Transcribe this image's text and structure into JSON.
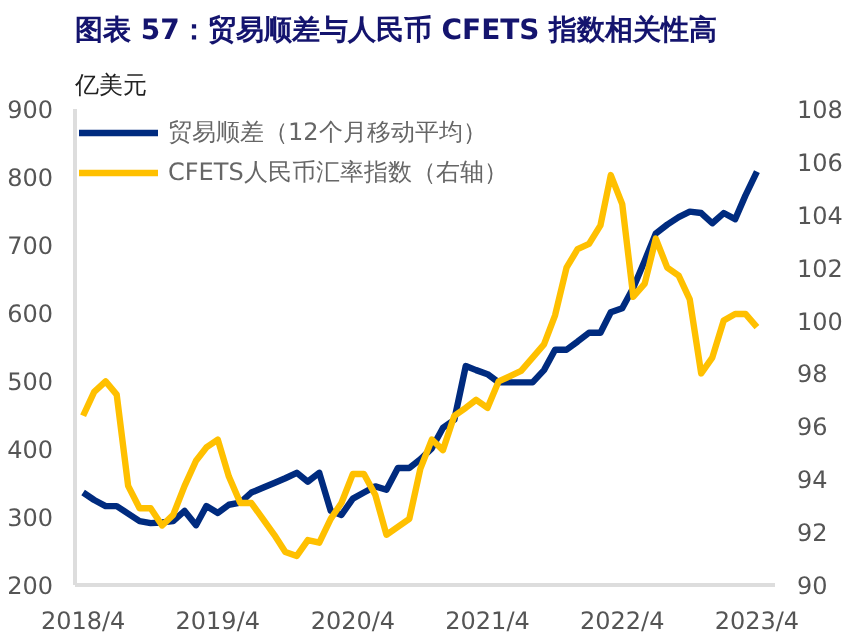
{
  "chart_data": {
    "type": "line",
    "title": "图表 57：贸易顺差与人民币 CFETS 指数相关性高",
    "ylabel": "亿美元",
    "x": [
      "2018-04",
      "2018-05",
      "2018-06",
      "2018-07",
      "2018-08",
      "2018-09",
      "2018-10",
      "2018-11",
      "2018-12",
      "2019-01",
      "2019-02",
      "2019-03",
      "2019-04",
      "2019-05",
      "2019-06",
      "2019-07",
      "2019-08",
      "2019-09",
      "2019-10",
      "2019-11",
      "2019-12",
      "2020-01",
      "2020-02",
      "2020-03",
      "2020-04",
      "2020-05",
      "2020-06",
      "2020-07",
      "2020-08",
      "2020-09",
      "2020-10",
      "2020-11",
      "2020-12",
      "2021-01",
      "2021-02",
      "2021-03",
      "2021-04",
      "2021-05",
      "2021-06",
      "2021-07",
      "2021-08",
      "2021-09",
      "2021-10",
      "2021-11",
      "2021-12",
      "2022-01",
      "2022-02",
      "2022-03",
      "2022-04",
      "2022-05",
      "2022-06",
      "2022-07",
      "2022-08",
      "2022-09",
      "2022-10",
      "2022-11",
      "2022-12",
      "2023-01",
      "2023-02",
      "2023-03",
      "2023-04"
    ],
    "series": [
      {
        "name": "贸易顺差（12个月移动平均）",
        "color": "#002b7f",
        "values": [
          336,
          325,
          316,
          316,
          305,
          294,
          291,
          292,
          294,
          309,
          288,
          316,
          306,
          318,
          321,
          336,
          343,
          350,
          357,
          365,
          352,
          365,
          309,
          303,
          327,
          336,
          345,
          340,
          372,
          372,
          385,
          401,
          431,
          443,
          522,
          516,
          510,
          498,
          498,
          498,
          498,
          516,
          546,
          546,
          558,
          571,
          571,
          601,
          607,
          637,
          677,
          717,
          730,
          741,
          749,
          747,
          732,
          747,
          738,
          773,
          808
        ]
      },
      {
        "name": "CFETS人民币汇率指数（右轴）",
        "color": "#ffc000",
        "axis": "y2",
        "values": [
          96.4,
          97.3,
          97.7,
          97.2,
          93.75,
          92.9,
          92.9,
          92.25,
          92.65,
          93.75,
          94.7,
          95.2,
          95.5,
          94.1,
          93.1,
          93.1,
          92.5,
          91.9,
          91.25,
          91.1,
          91.7,
          91.6,
          92.5,
          93.1,
          94.2,
          94.2,
          93.4,
          91.9,
          92.2,
          92.5,
          94.4,
          95.5,
          95.1,
          96.4,
          96.7,
          97.0,
          96.7,
          97.7,
          97.9,
          98.1,
          98.6,
          99.1,
          100.2,
          102.0,
          102.7,
          102.9,
          103.6,
          105.5,
          104.4,
          100.9,
          101.4,
          103.1,
          102.0,
          101.7,
          100.8,
          98.0,
          98.6,
          100.0,
          100.25,
          100.25,
          99.75
        ]
      }
    ],
    "xlim": [
      "2018-03-10",
      "2023-05-20"
    ],
    "xticks": [
      {
        "value": "2018-04",
        "label": "2018/4"
      },
      {
        "value": "2019-04",
        "label": "2019/4"
      },
      {
        "value": "2020-04",
        "label": "2020/4"
      },
      {
        "value": "2021-04",
        "label": "2021/4"
      },
      {
        "value": "2022-04",
        "label": "2022/4"
      },
      {
        "value": "2023-04",
        "label": "2023/4"
      }
    ],
    "ylim": [
      200,
      900
    ],
    "yticks": [
      200,
      300,
      400,
      500,
      600,
      700,
      800,
      900
    ],
    "y2lim": [
      90,
      108
    ],
    "y2ticks": [
      90,
      92,
      94,
      96,
      98,
      100,
      102,
      104,
      106,
      108
    ],
    "legend": "top left"
  }
}
